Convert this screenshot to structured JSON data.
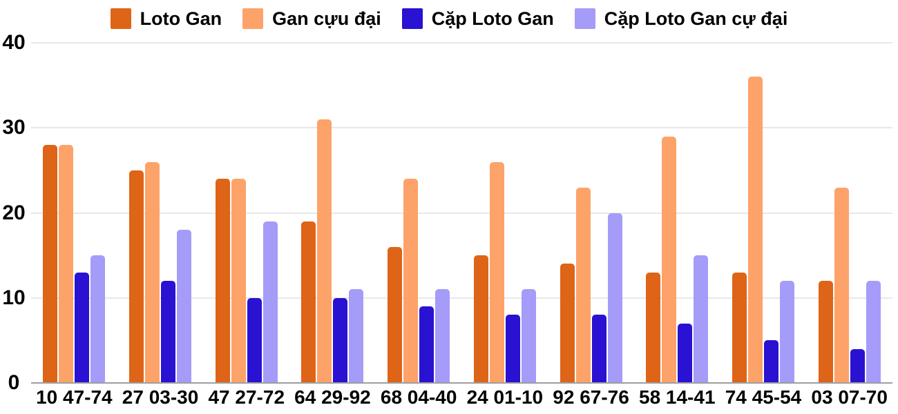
{
  "chart_data": {
    "type": "bar",
    "title": "",
    "xlabel": "",
    "ylabel": "",
    "ylim": [
      0,
      40
    ],
    "yticks": [
      40,
      30,
      20,
      10,
      0
    ],
    "grid": true,
    "legend_position": "top",
    "background_color": "#ffffff",
    "gridline_color": "#e8e8e8",
    "baseline_color": "#9e9e9e",
    "categories": [
      "10 47-74",
      "27 03-30",
      "47 27-72",
      "64 29-92",
      "68 04-40",
      "24 01-10",
      "92 67-76",
      "58 14-41",
      "74 45-54",
      "03 07-70"
    ],
    "series": [
      {
        "name": "Loto Gan",
        "color": "#de6418",
        "values": [
          28,
          25,
          24,
          19,
          16,
          15,
          14,
          13,
          13,
          12
        ]
      },
      {
        "name": "Gan cựu đại",
        "color": "#fda369",
        "values": [
          28,
          26,
          24,
          31,
          24,
          26,
          23,
          29,
          36,
          23
        ]
      },
      {
        "name": "Cặp Loto Gan",
        "color": "#2912d1",
        "values": [
          13,
          12,
          10,
          10,
          9,
          8,
          8,
          7,
          5,
          4
        ]
      },
      {
        "name": "Cặp Loto Gan cự đại",
        "color": "#a49cf8",
        "values": [
          15,
          18,
          19,
          11,
          11,
          11,
          20,
          15,
          12,
          12
        ]
      }
    ]
  }
}
